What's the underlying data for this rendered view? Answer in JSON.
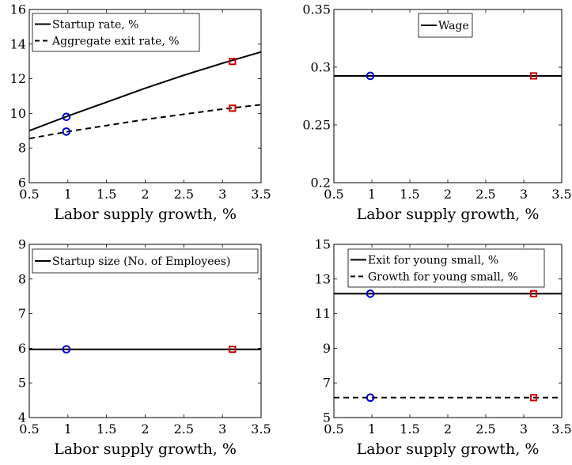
{
  "chart_data": [
    {
      "type": "line",
      "xlabel": "Labor supply growth, %",
      "ylabel": "",
      "xlim": [
        0.5,
        3.5
      ],
      "ylim": [
        6,
        16
      ],
      "xticks": [
        "0.5",
        "1",
        "1.5",
        "2",
        "2.5",
        "3",
        "3.5"
      ],
      "yticks": [
        "6",
        "8",
        "10",
        "12",
        "14",
        "16"
      ],
      "grid": false,
      "legend_position": "top-left",
      "series": [
        {
          "name": "Startup rate, %",
          "style": "solid",
          "x": [
            0.5,
            1.0,
            1.5,
            2.0,
            2.5,
            3.0,
            3.5
          ],
          "y": [
            9.0,
            9.85,
            10.65,
            11.45,
            12.2,
            12.9,
            13.55
          ]
        },
        {
          "name": "Aggregate exit rate, %",
          "style": "dashed",
          "x": [
            0.5,
            1.0,
            1.5,
            2.0,
            2.5,
            3.0,
            3.5
          ],
          "y": [
            8.55,
            8.95,
            9.3,
            9.65,
            9.95,
            10.25,
            10.5
          ]
        }
      ],
      "markers": [
        {
          "x": 0.98,
          "y": 9.8,
          "shape": "circle",
          "color": "#0000cc"
        },
        {
          "x": 0.98,
          "y": 8.95,
          "shape": "circle",
          "color": "#0000cc"
        },
        {
          "x": 3.13,
          "y": 13.0,
          "shape": "square",
          "color": "#cc0000"
        },
        {
          "x": 3.13,
          "y": 10.3,
          "shape": "square",
          "color": "#cc0000"
        }
      ]
    },
    {
      "type": "line",
      "xlabel": "Labor supply growth, %",
      "ylabel": "",
      "xlim": [
        0.5,
        3.5
      ],
      "ylim": [
        0.2,
        0.35
      ],
      "xticks": [
        "0.5",
        "1",
        "1.5",
        "2",
        "2.5",
        "3",
        "3.5"
      ],
      "yticks": [
        "0.2",
        "0.25",
        "0.3",
        "0.35"
      ],
      "grid": false,
      "legend_position": "top-center",
      "series": [
        {
          "name": "Wage",
          "style": "solid",
          "x": [
            0.5,
            3.5
          ],
          "y": [
            0.2925,
            0.2925
          ]
        }
      ],
      "markers": [
        {
          "x": 0.98,
          "y": 0.2925,
          "shape": "circle",
          "color": "#0000cc"
        },
        {
          "x": 3.13,
          "y": 0.2925,
          "shape": "square",
          "color": "#cc0000"
        }
      ]
    },
    {
      "type": "line",
      "xlabel": "Labor supply growth, %",
      "ylabel": "",
      "xlim": [
        0.5,
        3.5
      ],
      "ylim": [
        4,
        9
      ],
      "xticks": [
        "0.5",
        "1",
        "1.5",
        "2",
        "2.5",
        "3",
        "3.5"
      ],
      "yticks": [
        "4",
        "5",
        "6",
        "7",
        "8",
        "9"
      ],
      "grid": false,
      "legend_position": "top-left",
      "series": [
        {
          "name": "Startup size (No. of Employees)",
          "style": "solid",
          "x": [
            0.5,
            3.5
          ],
          "y": [
            5.97,
            5.97
          ]
        }
      ],
      "markers": [
        {
          "x": 0.98,
          "y": 5.97,
          "shape": "circle",
          "color": "#0000cc"
        },
        {
          "x": 3.13,
          "y": 5.97,
          "shape": "square",
          "color": "#cc0000"
        }
      ]
    },
    {
      "type": "line",
      "xlabel": "Labor supply growth, %",
      "ylabel": "",
      "xlim": [
        0.5,
        3.5
      ],
      "ylim": [
        5,
        15
      ],
      "xticks": [
        "0.5",
        "1",
        "1.5",
        "2",
        "2.5",
        "3",
        "3.5"
      ],
      "yticks": [
        "5",
        "7",
        "9",
        "11",
        "13",
        "15"
      ],
      "grid": false,
      "legend_position": "top-center",
      "series": [
        {
          "name": "Exit for young small, %",
          "style": "solid",
          "x": [
            0.5,
            3.5
          ],
          "y": [
            12.15,
            12.15
          ]
        },
        {
          "name": "Growth for young small, %",
          "style": "dashed",
          "x": [
            0.5,
            3.5
          ],
          "y": [
            6.15,
            6.15
          ]
        }
      ],
      "markers": [
        {
          "x": 0.98,
          "y": 12.15,
          "shape": "circle",
          "color": "#0000cc"
        },
        {
          "x": 0.98,
          "y": 6.15,
          "shape": "circle",
          "color": "#0000cc"
        },
        {
          "x": 3.13,
          "y": 12.15,
          "shape": "square",
          "color": "#cc0000"
        },
        {
          "x": 3.13,
          "y": 6.15,
          "shape": "square",
          "color": "#cc0000"
        }
      ]
    }
  ]
}
